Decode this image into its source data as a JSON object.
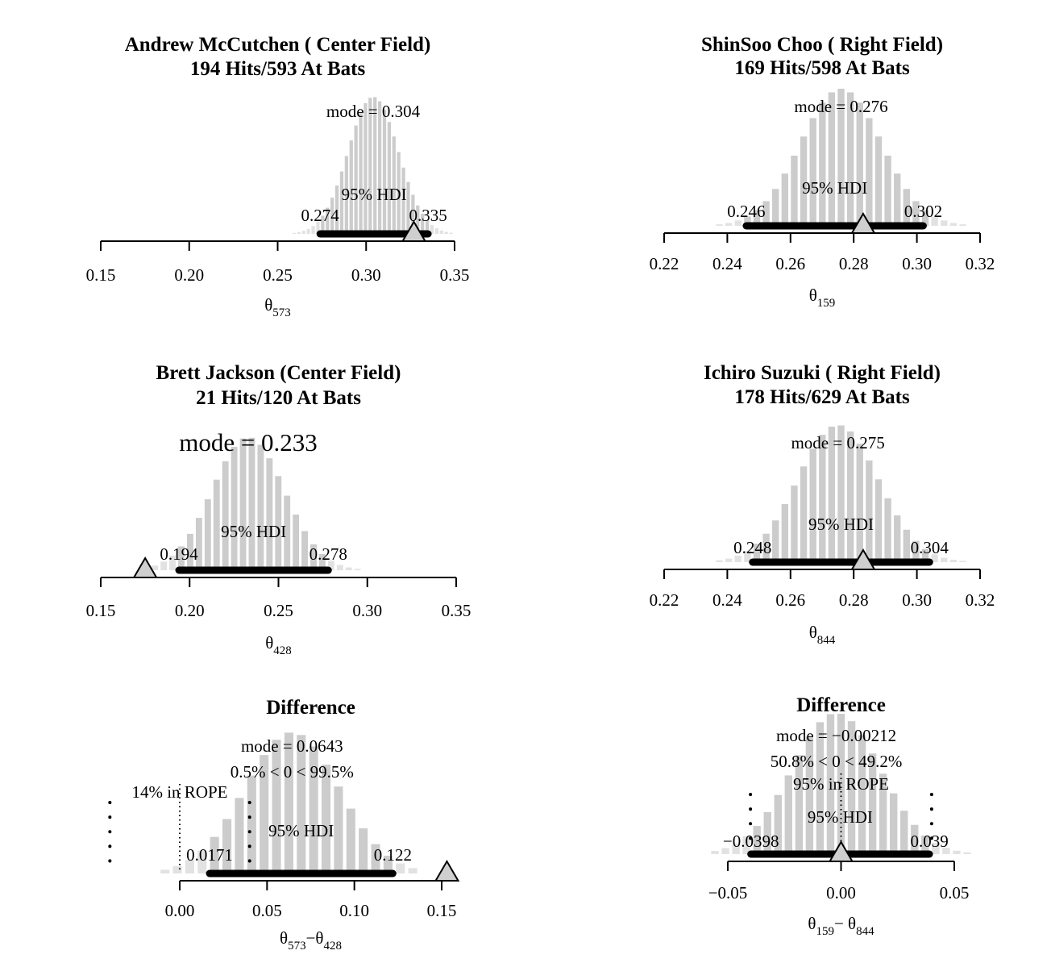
{
  "chart_data": [
    {
      "id": "mccutchen",
      "type": "histogram",
      "title": [
        "Andrew McCutchen ( Center Field)",
        "194 Hits/593 At Bats"
      ],
      "mode_label": "mode = 0.304",
      "mode": 0.304,
      "hdi_label": "95% HDI",
      "hdi": [
        0.274,
        0.335
      ],
      "hdi_low_label": "0.274",
      "hdi_high_label": "0.335",
      "marker": 0.327,
      "xlim": [
        0.15,
        0.35
      ],
      "xticks": [
        0.15,
        0.2,
        0.25,
        0.3,
        0.35
      ],
      "xtick_labels": [
        "0.15",
        "0.20",
        "0.25",
        "0.30",
        "0.35"
      ],
      "xlabel_main": "θ",
      "xlabel_sub": "573",
      "sd": 0.0142,
      "hist_range": [
        0.258,
        0.352
      ],
      "bins": 35
    },
    {
      "id": "choo",
      "type": "histogram",
      "title": [
        "ShinSoo Choo ( Right Field)",
        "169 Hits/598 At Bats"
      ],
      "mode_label": "mode = 0.276",
      "mode": 0.276,
      "hdi_label": "95% HDI",
      "hdi": [
        0.246,
        0.302
      ],
      "hdi_low_label": "0.246",
      "hdi_high_label": "0.302",
      "marker": 0.283,
      "xlim": [
        0.22,
        0.32
      ],
      "xticks": [
        0.22,
        0.24,
        0.26,
        0.28,
        0.3,
        0.32
      ],
      "xtick_labels": [
        "0.22",
        "0.24",
        "0.26",
        "0.28",
        "0.30",
        "0.32"
      ],
      "xlabel_main": "θ",
      "xlabel_sub": "159",
      "sd": 0.0128,
      "hist_range": [
        0.236,
        0.316
      ],
      "bins": 27
    },
    {
      "id": "jackson",
      "type": "histogram",
      "title": [
        "Brett Jackson (Center Field)",
        "21 Hits/120 At Bats"
      ],
      "mode_label": "mode = 0.233",
      "mode": 0.233,
      "hdi_label": "95% HDI",
      "hdi": [
        0.194,
        0.278
      ],
      "hdi_low_label": "0.194",
      "hdi_high_label": "0.278",
      "marker": 0.175,
      "xlim": [
        0.15,
        0.35
      ],
      "xticks": [
        0.15,
        0.2,
        0.25,
        0.3,
        0.35
      ],
      "xtick_labels": [
        "0.15",
        "0.20",
        "0.25",
        "0.30",
        "0.35"
      ],
      "xlabel_main": "θ",
      "xlabel_sub": "428",
      "sd": 0.0203,
      "hist_range": [
        0.178,
        0.297
      ],
      "bins": 24
    },
    {
      "id": "suzuki",
      "type": "histogram",
      "title": [
        "Ichiro Suzuki ( Right Field)",
        "178 Hits/629 At Bats"
      ],
      "mode_label": "mode = 0.275",
      "mode": 0.275,
      "hdi_label": "95% HDI",
      "hdi": [
        0.248,
        0.304
      ],
      "hdi_low_label": "0.248",
      "hdi_high_label": "0.304",
      "marker": 0.283,
      "xlim": [
        0.22,
        0.32
      ],
      "xticks": [
        0.22,
        0.24,
        0.26,
        0.28,
        0.3,
        0.32
      ],
      "xtick_labels": [
        "0.22",
        "0.24",
        "0.26",
        "0.28",
        "0.30",
        "0.32"
      ],
      "xlabel_main": "θ",
      "xlabel_sub": "844",
      "sd": 0.0128,
      "hist_range": [
        0.236,
        0.316
      ],
      "bins": 27
    },
    {
      "id": "diff1",
      "type": "histogram",
      "title": [
        "Difference"
      ],
      "mode_label": "mode = 0.0643",
      "mode": 0.0643,
      "compare_label": "0.5% < 0 < 99.5%",
      "compare_value": 0,
      "rope_label": "14% in ROPE",
      "rope": [
        -0.04,
        0.04
      ],
      "hdi_label": "95% HDI",
      "hdi": [
        0.0171,
        0.122
      ],
      "hdi_low_label": "0.0171",
      "hdi_high_label": "0.122",
      "marker": 0.153,
      "xlim": [
        0.0,
        0.15
      ],
      "xticks": [
        0.0,
        0.05,
        0.1,
        0.15
      ],
      "xtick_labels": [
        "0.00",
        "0.05",
        "0.10",
        "0.15"
      ],
      "xlabel_main": "θ",
      "xlabel_sub": "573",
      "xlabel_main2": "−θ",
      "xlabel_sub2": "428",
      "sd": 0.027,
      "hist_range": [
        -0.012,
        0.137
      ],
      "bins": 21
    },
    {
      "id": "diff2",
      "type": "histogram",
      "title": [
        "Difference"
      ],
      "mode_label": "mode = −0.00212",
      "mode": -0.00212,
      "compare_label": "50.8% < 0 < 49.2%",
      "compare_value": 0,
      "rope_label": "95% in ROPE",
      "rope": [
        -0.04,
        0.04
      ],
      "hdi_label": "95% HDI",
      "hdi": [
        -0.0398,
        0.039
      ],
      "hdi_low_label": "−0.0398",
      "hdi_high_label": "0.039",
      "marker": 0.0,
      "xlim": [
        -0.05,
        0.05
      ],
      "xticks": [
        -0.05,
        0.0,
        0.05
      ],
      "xtick_labels": [
        "−0.05",
        "0.00",
        "0.05"
      ],
      "xlabel_main": "θ",
      "xlabel_sub": "159",
      "xlabel_main2": "− θ",
      "xlabel_sub2": "844",
      "sd": 0.0195,
      "hist_range": [
        -0.058,
        0.058
      ],
      "bins": 25
    }
  ]
}
